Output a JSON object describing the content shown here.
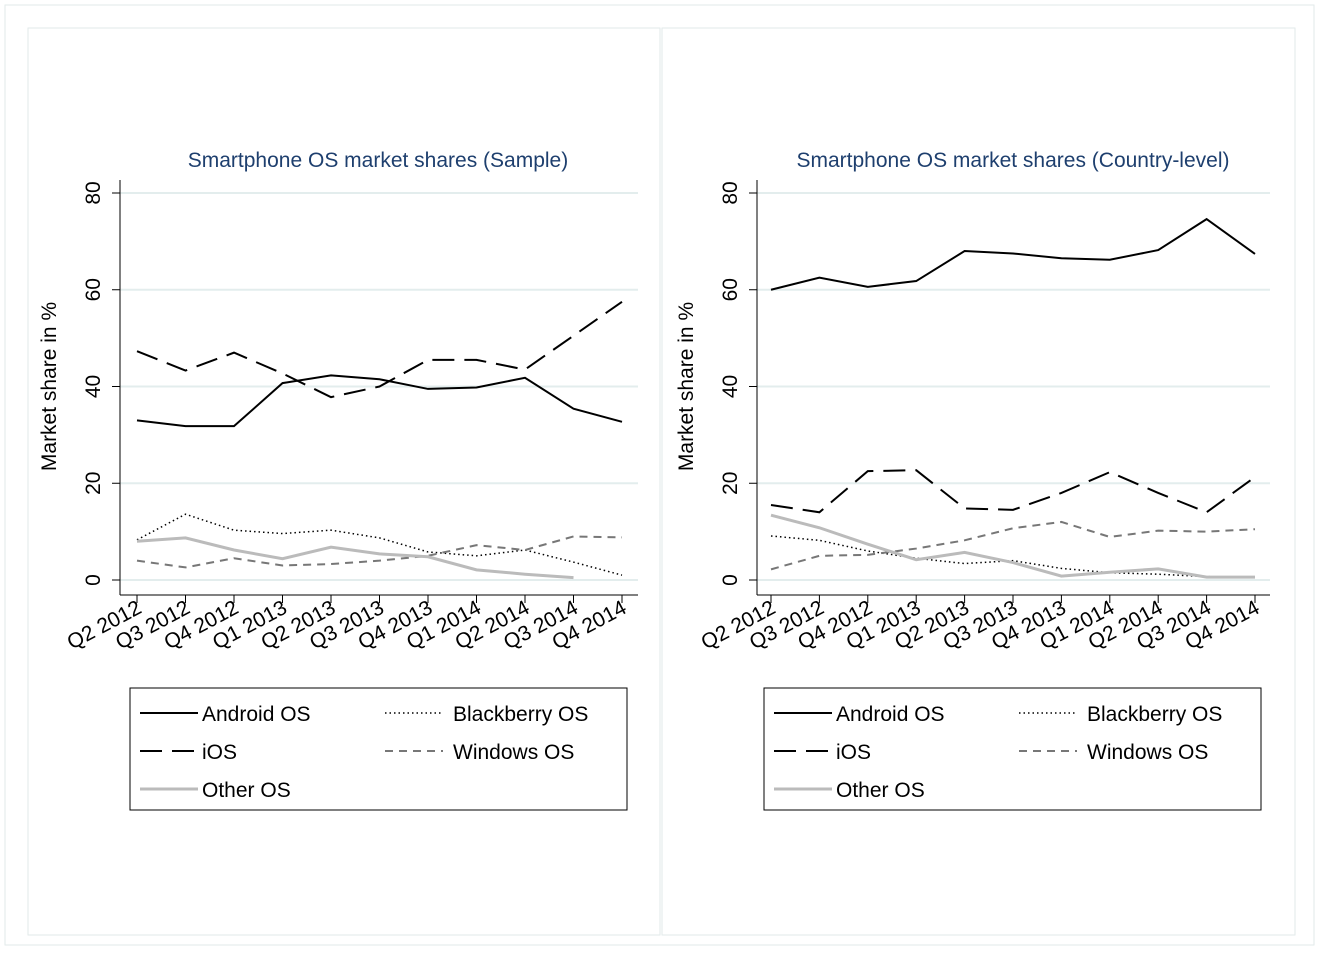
{
  "chart_data": [
    {
      "type": "line",
      "title": "Smartphone OS market shares (Sample)",
      "y_label": "Market share in %",
      "categories": [
        "Q2 2012",
        "Q3 2012",
        "Q4 2012",
        "Q1 2013",
        "Q2 2013",
        "Q3 2013",
        "Q4 2013",
        "Q1 2014",
        "Q2 2014",
        "Q3 2014",
        "Q4 2014"
      ],
      "ylim": [
        0,
        80
      ],
      "yticks": [
        0,
        20,
        40,
        60,
        80
      ],
      "grid": true,
      "series": [
        {
          "name": "Android OS",
          "color": "#000000",
          "style": "solid",
          "values": [
            33,
            31.8,
            31.8,
            40.7,
            42.3,
            41.5,
            39.5,
            39.8,
            41.8,
            35.4,
            32.7
          ]
        },
        {
          "name": "Blackberry OS",
          "color": "#000000",
          "style": "dot",
          "values": [
            8.3,
            13.6,
            10.3,
            9.6,
            10.3,
            8.7,
            5.8,
            5,
            6.2,
            3.7,
            1
          ]
        },
        {
          "name": "iOS",
          "color": "#000000",
          "style": "longdash",
          "values": [
            47.3,
            43.3,
            47,
            42.7,
            37.8,
            40,
            45.5,
            45.5,
            43.5,
            50.5,
            57.5
          ]
        },
        {
          "name": "Windows OS",
          "color": "#777777",
          "style": "dash",
          "values": [
            4,
            2.6,
            4.5,
            3,
            3.3,
            4,
            5,
            7.2,
            6.2,
            9,
            8.8
          ]
        },
        {
          "name": "Other OS",
          "color": "#bbbbbb",
          "style": "thick",
          "values": [
            8,
            8.7,
            6.2,
            4.4,
            6.8,
            5.4,
            4.8,
            2.1,
            1.2,
            0.5,
            null
          ]
        }
      ]
    },
    {
      "type": "line",
      "title": "Smartphone OS market shares (Country-level)",
      "y_label": "Market share in %",
      "categories": [
        "Q2 2012",
        "Q3 2012",
        "Q4 2012",
        "Q1 2013",
        "Q2 2013",
        "Q3 2013",
        "Q4 2013",
        "Q1 2014",
        "Q2 2014",
        "Q3 2014",
        "Q4 2014"
      ],
      "ylim": [
        0,
        80
      ],
      "yticks": [
        0,
        20,
        40,
        60,
        80
      ],
      "grid": true,
      "series": [
        {
          "name": "Android OS",
          "color": "#000000",
          "style": "solid",
          "values": [
            60,
            62.5,
            60.6,
            61.8,
            68,
            67.5,
            66.5,
            66.2,
            68.2,
            74.6,
            67.4
          ]
        },
        {
          "name": "Blackberry OS",
          "color": "#000000",
          "style": "dot",
          "values": [
            9.1,
            8.2,
            6,
            4.5,
            3.4,
            4,
            2.4,
            1.5,
            1.2,
            0.7,
            0.5
          ]
        },
        {
          "name": "iOS",
          "color": "#000000",
          "style": "longdash",
          "values": [
            15.5,
            14,
            22.5,
            22.7,
            14.8,
            14.5,
            18,
            22.3,
            18,
            14,
            21.3
          ]
        },
        {
          "name": "Windows OS",
          "color": "#777777",
          "style": "dash",
          "values": [
            2.2,
            5,
            5.2,
            6.5,
            8.2,
            10.7,
            12,
            8.9,
            10.2,
            10,
            10.5
          ]
        },
        {
          "name": "Other OS",
          "color": "#bbbbbb",
          "style": "thick",
          "values": [
            13.4,
            10.8,
            7.4,
            4.2,
            5.7,
            3.6,
            0.8,
            1.6,
            2.3,
            0.6,
            0.6
          ]
        }
      ]
    }
  ]
}
